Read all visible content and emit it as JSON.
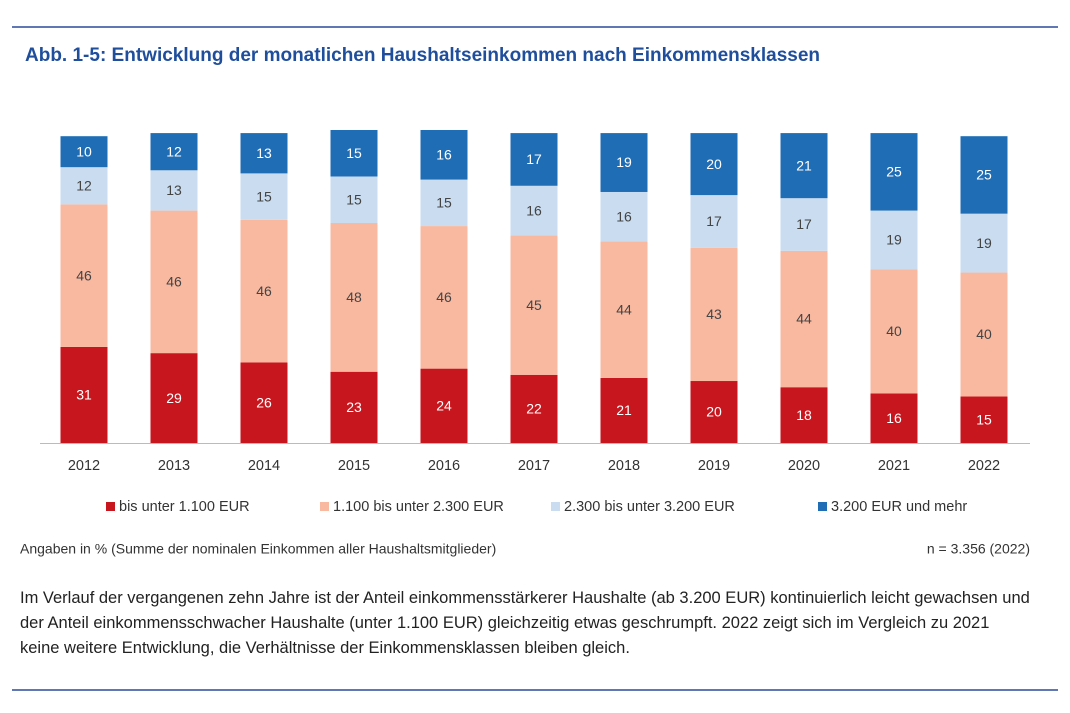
{
  "chart_data": {
    "type": "stacked-bar",
    "title": "Abb. 1-5: Entwicklung der monatlichen Haushaltseinkommen nach Einkommensklassen",
    "categories": [
      "2012",
      "2013",
      "2014",
      "2015",
      "2016",
      "2017",
      "2018",
      "2019",
      "2020",
      "2021",
      "2022"
    ],
    "series": [
      {
        "name": "bis unter 1.100 EUR",
        "color": "#c8161e",
        "values": [
          31,
          29,
          26,
          23,
          24,
          22,
          21,
          20,
          18,
          16,
          15
        ]
      },
      {
        "name": "1.100 bis unter 2.300 EUR",
        "color": "#f9b9a0",
        "values": [
          46,
          46,
          46,
          48,
          46,
          45,
          44,
          43,
          44,
          40,
          40
        ]
      },
      {
        "name": "2.300 bis unter 3.200 EUR",
        "color": "#c9dcf0",
        "values": [
          12,
          13,
          15,
          15,
          15,
          16,
          16,
          17,
          17,
          19,
          19
        ]
      },
      {
        "name": "3.200 EUR und mehr",
        "color": "#1f6db5",
        "values": [
          10,
          12,
          13,
          15,
          16,
          17,
          19,
          20,
          21,
          25,
          25
        ]
      }
    ],
    "note": "Angaben in % (Summe der nominalen Einkommen aller Haushaltsmitglieder)",
    "sample": "n = 3.356 (2022)"
  },
  "body_text": "Im Verlauf der vergangenen zehn Jahre ist der Anteil einkommensstärkerer Haushalte (ab 3.200 EUR) kontinuierlich leicht gewachsen und der Anteil einkommensschwacher Haushalte (unter 1.100 EUR) gleichzeitig etwas geschrumpft. 2022 zeigt sich im Vergleich zu 2021 keine weitere Entwicklung, die Verhältnisse der Einkommensklassen bleiben gleich."
}
